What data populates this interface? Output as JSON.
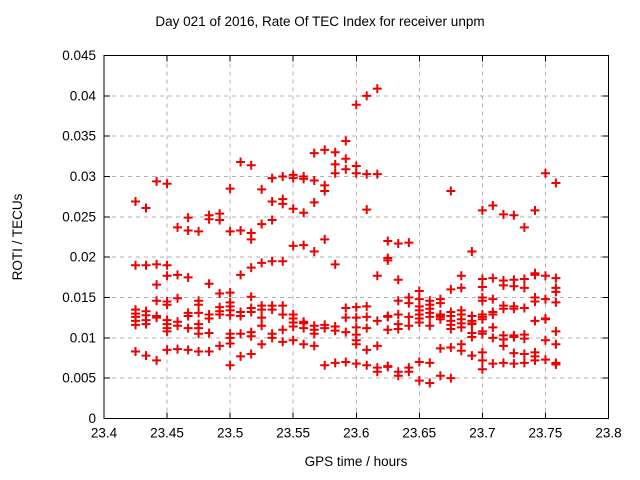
{
  "chart_data": {
    "type": "scatter",
    "title": "Day 021 of 2016, Rate Of TEC Index for receiver unpm",
    "xlabel": "GPS time / hours",
    "ylabel": "ROTI / TECUs",
    "xlim": [
      23.4,
      23.8
    ],
    "ylim": [
      0,
      0.045
    ],
    "x_tick_labels": [
      "23.4",
      "23.45",
      "23.5",
      "23.55",
      "23.6",
      "23.65",
      "23.7",
      "23.75",
      "23.8"
    ],
    "y_tick_labels": [
      "0",
      "0.005",
      "0.01",
      "0.015",
      "0.02",
      "0.025",
      "0.03",
      "0.035",
      "0.04",
      "0.045"
    ],
    "grid": true,
    "legend": "none",
    "marker": "plus",
    "marker_color": "#ee0000",
    "grid_color": "#b2b2b2",
    "frame_color": "#000000",
    "series_name": "ROTI",
    "epochs": [
      {
        "t": 23.425,
        "values": [
          0.0269,
          0.019,
          0.0135,
          0.013,
          0.0126,
          0.0121,
          0.0116,
          0.0083
        ]
      },
      {
        "t": 23.4333,
        "values": [
          0.0261,
          0.019,
          0.0133,
          0.0128,
          0.0122,
          0.0117,
          0.0078
        ]
      },
      {
        "t": 23.4417,
        "values": [
          0.0294,
          0.0191,
          0.0166,
          0.0146,
          0.0127,
          0.0125,
          0.0072
        ]
      },
      {
        "t": 23.45,
        "values": [
          0.0291,
          0.019,
          0.0177,
          0.0145,
          0.0141,
          0.0122,
          0.0117,
          0.0112,
          0.0108,
          0.0085
        ]
      },
      {
        "t": 23.4583,
        "values": [
          0.0237,
          0.0178,
          0.0149,
          0.012,
          0.0115,
          0.0086
        ]
      },
      {
        "t": 23.4667,
        "values": [
          0.0249,
          0.0233,
          0.0175,
          0.0131,
          0.0127,
          0.0112,
          0.0085
        ]
      },
      {
        "t": 23.475,
        "values": [
          0.0232,
          0.0146,
          0.0141,
          0.0131,
          0.0117,
          0.0112,
          0.0105,
          0.0083
        ]
      },
      {
        "t": 23.4833,
        "values": [
          0.0252,
          0.0247,
          0.0167,
          0.0129,
          0.0124,
          0.0106,
          0.0083
        ]
      },
      {
        "t": 23.4917,
        "values": [
          0.0254,
          0.0246,
          0.0155,
          0.0138,
          0.0133,
          0.0129,
          0.009
        ]
      },
      {
        "t": 23.5,
        "values": [
          0.0285,
          0.0232,
          0.0156,
          0.0144,
          0.0139,
          0.0134,
          0.0128,
          0.0105,
          0.01,
          0.0093,
          0.0066
        ]
      },
      {
        "t": 23.5083,
        "values": [
          0.0318,
          0.0233,
          0.0178,
          0.0132,
          0.0127,
          0.0105,
          0.0077
        ]
      },
      {
        "t": 23.5167,
        "values": [
          0.0314,
          0.023,
          0.0222,
          0.0187,
          0.0151,
          0.0137,
          0.0132,
          0.0107,
          0.0102,
          0.008
        ]
      },
      {
        "t": 23.525,
        "values": [
          0.0284,
          0.0241,
          0.0193,
          0.014,
          0.0135,
          0.0125,
          0.0115,
          0.0092
        ]
      },
      {
        "t": 23.5333,
        "values": [
          0.0298,
          0.0269,
          0.0246,
          0.0195,
          0.014,
          0.0135,
          0.0105,
          0.01
        ]
      },
      {
        "t": 23.5417,
        "values": [
          0.03,
          0.0272,
          0.0266,
          0.0195,
          0.014,
          0.0129,
          0.011,
          0.0095
        ]
      },
      {
        "t": 23.55,
        "values": [
          0.0302,
          0.0298,
          0.026,
          0.0214,
          0.0129,
          0.0124,
          0.0119,
          0.0114,
          0.0097
        ]
      },
      {
        "t": 23.5583,
        "values": [
          0.03,
          0.0297,
          0.0255,
          0.0215,
          0.012,
          0.0118,
          0.0112,
          0.0092
        ]
      },
      {
        "t": 23.5667,
        "values": [
          0.0329,
          0.0295,
          0.0268,
          0.0207,
          0.0115,
          0.011,
          0.0105,
          0.009
        ]
      },
      {
        "t": 23.575,
        "values": [
          0.0333,
          0.0289,
          0.0282,
          0.0222,
          0.0116,
          0.0112,
          0.0066
        ]
      },
      {
        "t": 23.5833,
        "values": [
          0.033,
          0.0315,
          0.0304,
          0.0191,
          0.0114,
          0.0109,
          0.0069
        ]
      },
      {
        "t": 23.5917,
        "values": [
          0.0344,
          0.0322,
          0.0309,
          0.0137,
          0.0125,
          0.0107,
          0.007
        ]
      },
      {
        "t": 23.6,
        "values": [
          0.0389,
          0.0313,
          0.0304,
          0.0138,
          0.0125,
          0.0113,
          0.0104,
          0.0097,
          0.0092,
          0.0068
        ]
      },
      {
        "t": 23.6083,
        "values": [
          0.04,
          0.0303,
          0.0259,
          0.0139,
          0.0126,
          0.0112,
          0.0085,
          0.0066
        ]
      },
      {
        "t": 23.6167,
        "values": [
          0.0409,
          0.0303,
          0.0177,
          0.0121,
          0.009,
          0.0063,
          0.0058
        ]
      },
      {
        "t": 23.625,
        "values": [
          0.022,
          0.0199,
          0.0196,
          0.0127,
          0.0126,
          0.011,
          0.0065,
          0.0064
        ]
      },
      {
        "t": 23.6333,
        "values": [
          0.0217,
          0.0172,
          0.0146,
          0.0129,
          0.0117,
          0.0111,
          0.0058,
          0.0053
        ]
      },
      {
        "t": 23.6417,
        "values": [
          0.0218,
          0.015,
          0.0143,
          0.0126,
          0.0115,
          0.0063,
          0.0058
        ]
      },
      {
        "t": 23.65,
        "values": [
          0.0158,
          0.0148,
          0.0139,
          0.0134,
          0.0129,
          0.0124,
          0.0119,
          0.007,
          0.0047
        ]
      },
      {
        "t": 23.6583,
        "values": [
          0.0146,
          0.0141,
          0.0136,
          0.0131,
          0.0126,
          0.0115,
          0.0069,
          0.0044
        ]
      },
      {
        "t": 23.6667,
        "values": [
          0.0148,
          0.0143,
          0.0129,
          0.0127,
          0.0126,
          0.0123,
          0.0087,
          0.0053
        ]
      },
      {
        "t": 23.675,
        "values": [
          0.0282,
          0.016,
          0.0132,
          0.0127,
          0.0121,
          0.0116,
          0.0111,
          0.0088,
          0.005
        ]
      },
      {
        "t": 23.6833,
        "values": [
          0.0177,
          0.0162,
          0.0134,
          0.0129,
          0.0123,
          0.0118,
          0.0113,
          0.0092,
          0.0084
        ]
      },
      {
        "t": 23.6917,
        "values": [
          0.0207,
          0.0127,
          0.0121,
          0.0118,
          0.0117,
          0.0106,
          0.0101,
          0.0078
        ]
      },
      {
        "t": 23.7,
        "values": [
          0.0258,
          0.0173,
          0.0163,
          0.015,
          0.0146,
          0.0129,
          0.0126,
          0.0123,
          0.0108,
          0.0105,
          0.0082,
          0.0072,
          0.0061
        ]
      },
      {
        "t": 23.7083,
        "values": [
          0.0264,
          0.0174,
          0.0148,
          0.0132,
          0.0129,
          0.0113,
          0.01,
          0.0068
        ]
      },
      {
        "t": 23.7167,
        "values": [
          0.0253,
          0.0171,
          0.0165,
          0.014,
          0.0136,
          0.0103,
          0.0098,
          0.009,
          0.0069
        ]
      },
      {
        "t": 23.725,
        "values": [
          0.0252,
          0.0172,
          0.0164,
          0.0139,
          0.0136,
          0.0103,
          0.0101,
          0.0081,
          0.0068
        ]
      },
      {
        "t": 23.7333,
        "values": [
          0.0237,
          0.0173,
          0.0162,
          0.0137,
          0.0104,
          0.0099,
          0.008,
          0.0069
        ]
      },
      {
        "t": 23.7417,
        "values": [
          0.0258,
          0.018,
          0.0178,
          0.015,
          0.0145,
          0.0121,
          0.0082,
          0.0077,
          0.0072
        ]
      },
      {
        "t": 23.75,
        "values": [
          0.0304,
          0.0177,
          0.0148,
          0.0124,
          0.0123,
          0.0097,
          0.0073
        ]
      },
      {
        "t": 23.7583,
        "values": [
          0.0292,
          0.0174,
          0.0162,
          0.0157,
          0.0144,
          0.0108,
          0.0092,
          0.0069,
          0.0067
        ]
      }
    ]
  }
}
